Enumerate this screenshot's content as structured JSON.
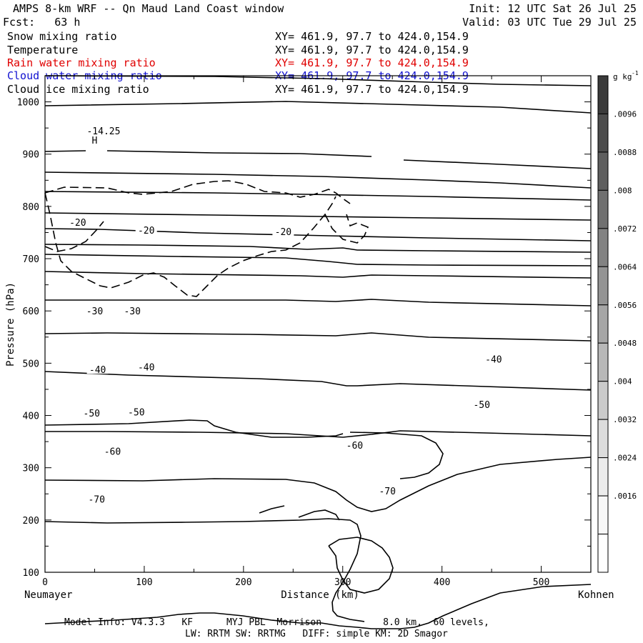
{
  "header": {
    "title": "AMPS 8-km WRF -- Qn Maud Land Coast window",
    "init": "Init: 12 UTC Sat 26 Jul 25",
    "fcst": "Fcst:   63 h",
    "valid": "Valid: 03 UTC Tue 29 Jul 25"
  },
  "fields": [
    {
      "name": "Snow mixing ratio",
      "xy": "XY= 461.9, 97.7 to 424.0,154.9",
      "color": "#000000"
    },
    {
      "name": "Temperature",
      "xy": "XY= 461.9, 97.7 to 424.0,154.9",
      "color": "#000000"
    },
    {
      "name": "Rain water mixing ratio",
      "xy": "XY= 461.9, 97.7 to 424.0,154.9",
      "color": "#e00000"
    },
    {
      "name": "Cloud water mixing ratio",
      "xy": "XY= 461.9, 97.7 to 424.0,154.9",
      "color": "#1010d0"
    },
    {
      "name": "Cloud ice mixing ratio",
      "xy": "XY= 461.9, 97.7 to 424.0,154.9",
      "color": "#000000"
    }
  ],
  "footer": {
    "line1": "Model Info: V4.3.3   KF      MYJ PBL  Morrison           8.0 km,  60 levels,",
    "line2": "LW: RRTM SW: RRTMG   DIFF: simple KM: 2D Smagor"
  },
  "chart_data": {
    "type": "contour",
    "xlabel": "Distance (km)",
    "ylabel": "Pressure (hPa)",
    "xlim": [
      0,
      550
    ],
    "ylim": [
      1050,
      100
    ],
    "x_ticks": [
      0,
      100,
      200,
      300,
      400,
      500
    ],
    "y_ticks": [
      200,
      300,
      400,
      500,
      600,
      700,
      800,
      900,
      1000
    ],
    "y_tick_top_label": "100",
    "left_endpoint": "Neumayer",
    "right_endpoint": "Kohnen",
    "colorbar": {
      "unit": "g kg",
      "unit_exp": "-1",
      "labels": [
        ".0096",
        ".0088",
        ".008",
        ".0072",
        ".0064",
        ".0056",
        ".0048",
        ".004",
        ".0032",
        ".0024",
        ".0016"
      ],
      "colors": [
        "#3a3a3a",
        "#4c4c4c",
        "#5e5e5e",
        "#707070",
        "#828282",
        "#949494",
        "#a6a6a6",
        "#b8b8b8",
        "#cacaca",
        "#dcdcdc",
        "#ececec",
        "#f7f7f7",
        "#ffffff"
      ]
    },
    "temperature_labels": [
      {
        "text": "-70",
        "x": 52,
        "p": 240
      },
      {
        "text": "-70",
        "x": 345,
        "p": 256
      },
      {
        "text": "-60",
        "x": 68,
        "p": 332
      },
      {
        "text": "-60",
        "x": 312,
        "p": 343
      },
      {
        "text": "-50",
        "x": 47,
        "p": 405
      },
      {
        "text": "-50",
        "x": 92,
        "p": 407
      },
      {
        "text": "-50",
        "x": 440,
        "p": 421
      },
      {
        "text": "-40",
        "x": 53,
        "p": 488
      },
      {
        "text": "-40",
        "x": 102,
        "p": 493
      },
      {
        "text": "-40",
        "x": 452,
        "p": 508
      },
      {
        "text": "-30",
        "x": 50,
        "p": 600
      },
      {
        "text": "-30",
        "x": 88,
        "p": 600
      },
      {
        "text": "-20",
        "x": 33,
        "p": 770
      },
      {
        "text": "-20",
        "x": 102,
        "p": 755
      },
      {
        "text": "-20",
        "x": 240,
        "p": 752
      }
    ],
    "extrema": [
      {
        "text": "H",
        "x": 50,
        "p": 927
      },
      {
        "text": "-14.25",
        "x": 59,
        "p": 945
      }
    ]
  }
}
